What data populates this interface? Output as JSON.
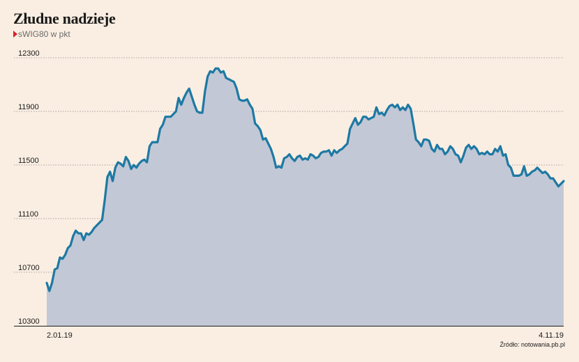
{
  "chart_data": {
    "type": "area",
    "title": "Złudne nadzieje",
    "subtitle": "sWIG80 w pkt",
    "source": "Źródło: notowania.pb.pl",
    "ylim": [
      10300,
      12300
    ],
    "yticks": [
      12300,
      11900,
      11500,
      11100,
      10700,
      10300
    ],
    "xtick_labels": [
      "2.01.19",
      "4.11.19"
    ],
    "grid": true,
    "colors": {
      "line": "#1d79a3",
      "fill": "#c3c8d6",
      "grid": "#8a8a8a",
      "marker": "#d6232a"
    },
    "series": [
      {
        "values": [
          10620,
          10560,
          10620,
          10720,
          10730,
          10810,
          10800,
          10830,
          10880,
          10900,
          10970,
          11010,
          10990,
          10990,
          10940,
          10990,
          10980,
          11000,
          11030,
          11050,
          11070,
          11090,
          11240,
          11410,
          11450,
          11380,
          11480,
          11520,
          11510,
          11490,
          11560,
          11530,
          11470,
          11500,
          11480,
          11510,
          11530,
          11540,
          11520,
          11640,
          11670,
          11670,
          11670,
          11770,
          11800,
          11860,
          11860,
          11860,
          11880,
          11900,
          12000,
          11950,
          12000,
          12040,
          12070,
          12010,
          11950,
          11900,
          11890,
          11890,
          12050,
          12160,
          12200,
          12190,
          12220,
          12220,
          12190,
          12200,
          12150,
          12140,
          12130,
          12120,
          12070,
          11990,
          11980,
          11980,
          11990,
          11950,
          11920,
          11810,
          11790,
          11760,
          11690,
          11700,
          11660,
          11620,
          11560,
          11480,
          11490,
          11480,
          11550,
          11560,
          11580,
          11550,
          11530,
          11560,
          11570,
          11540,
          11550,
          11540,
          11580,
          11570,
          11550,
          11560,
          11590,
          11600,
          11600,
          11610,
          11570,
          11610,
          11590,
          11610,
          11620,
          11640,
          11660,
          11770,
          11810,
          11850,
          11800,
          11820,
          11860,
          11860,
          11840,
          11850,
          11860,
          11930,
          11880,
          11890,
          11870,
          11910,
          11940,
          11950,
          11930,
          11950,
          11910,
          11930,
          11910,
          11950,
          11920,
          11810,
          11690,
          11670,
          11640,
          11690,
          11690,
          11680,
          11620,
          11600,
          11650,
          11620,
          11620,
          11580,
          11600,
          11640,
          11620,
          11580,
          11570,
          11520,
          11570,
          11630,
          11650,
          11620,
          11640,
          11620,
          11580,
          11590,
          11580,
          11600,
          11580,
          11580,
          11620,
          11600,
          11640,
          11570,
          11580,
          11500,
          11480,
          11420,
          11420,
          11420,
          11430,
          11490,
          11420,
          11430,
          11450,
          11460,
          11480,
          11460,
          11440,
          11450,
          11430,
          11400,
          11400,
          11370,
          11340,
          11360,
          11380
        ]
      }
    ]
  }
}
